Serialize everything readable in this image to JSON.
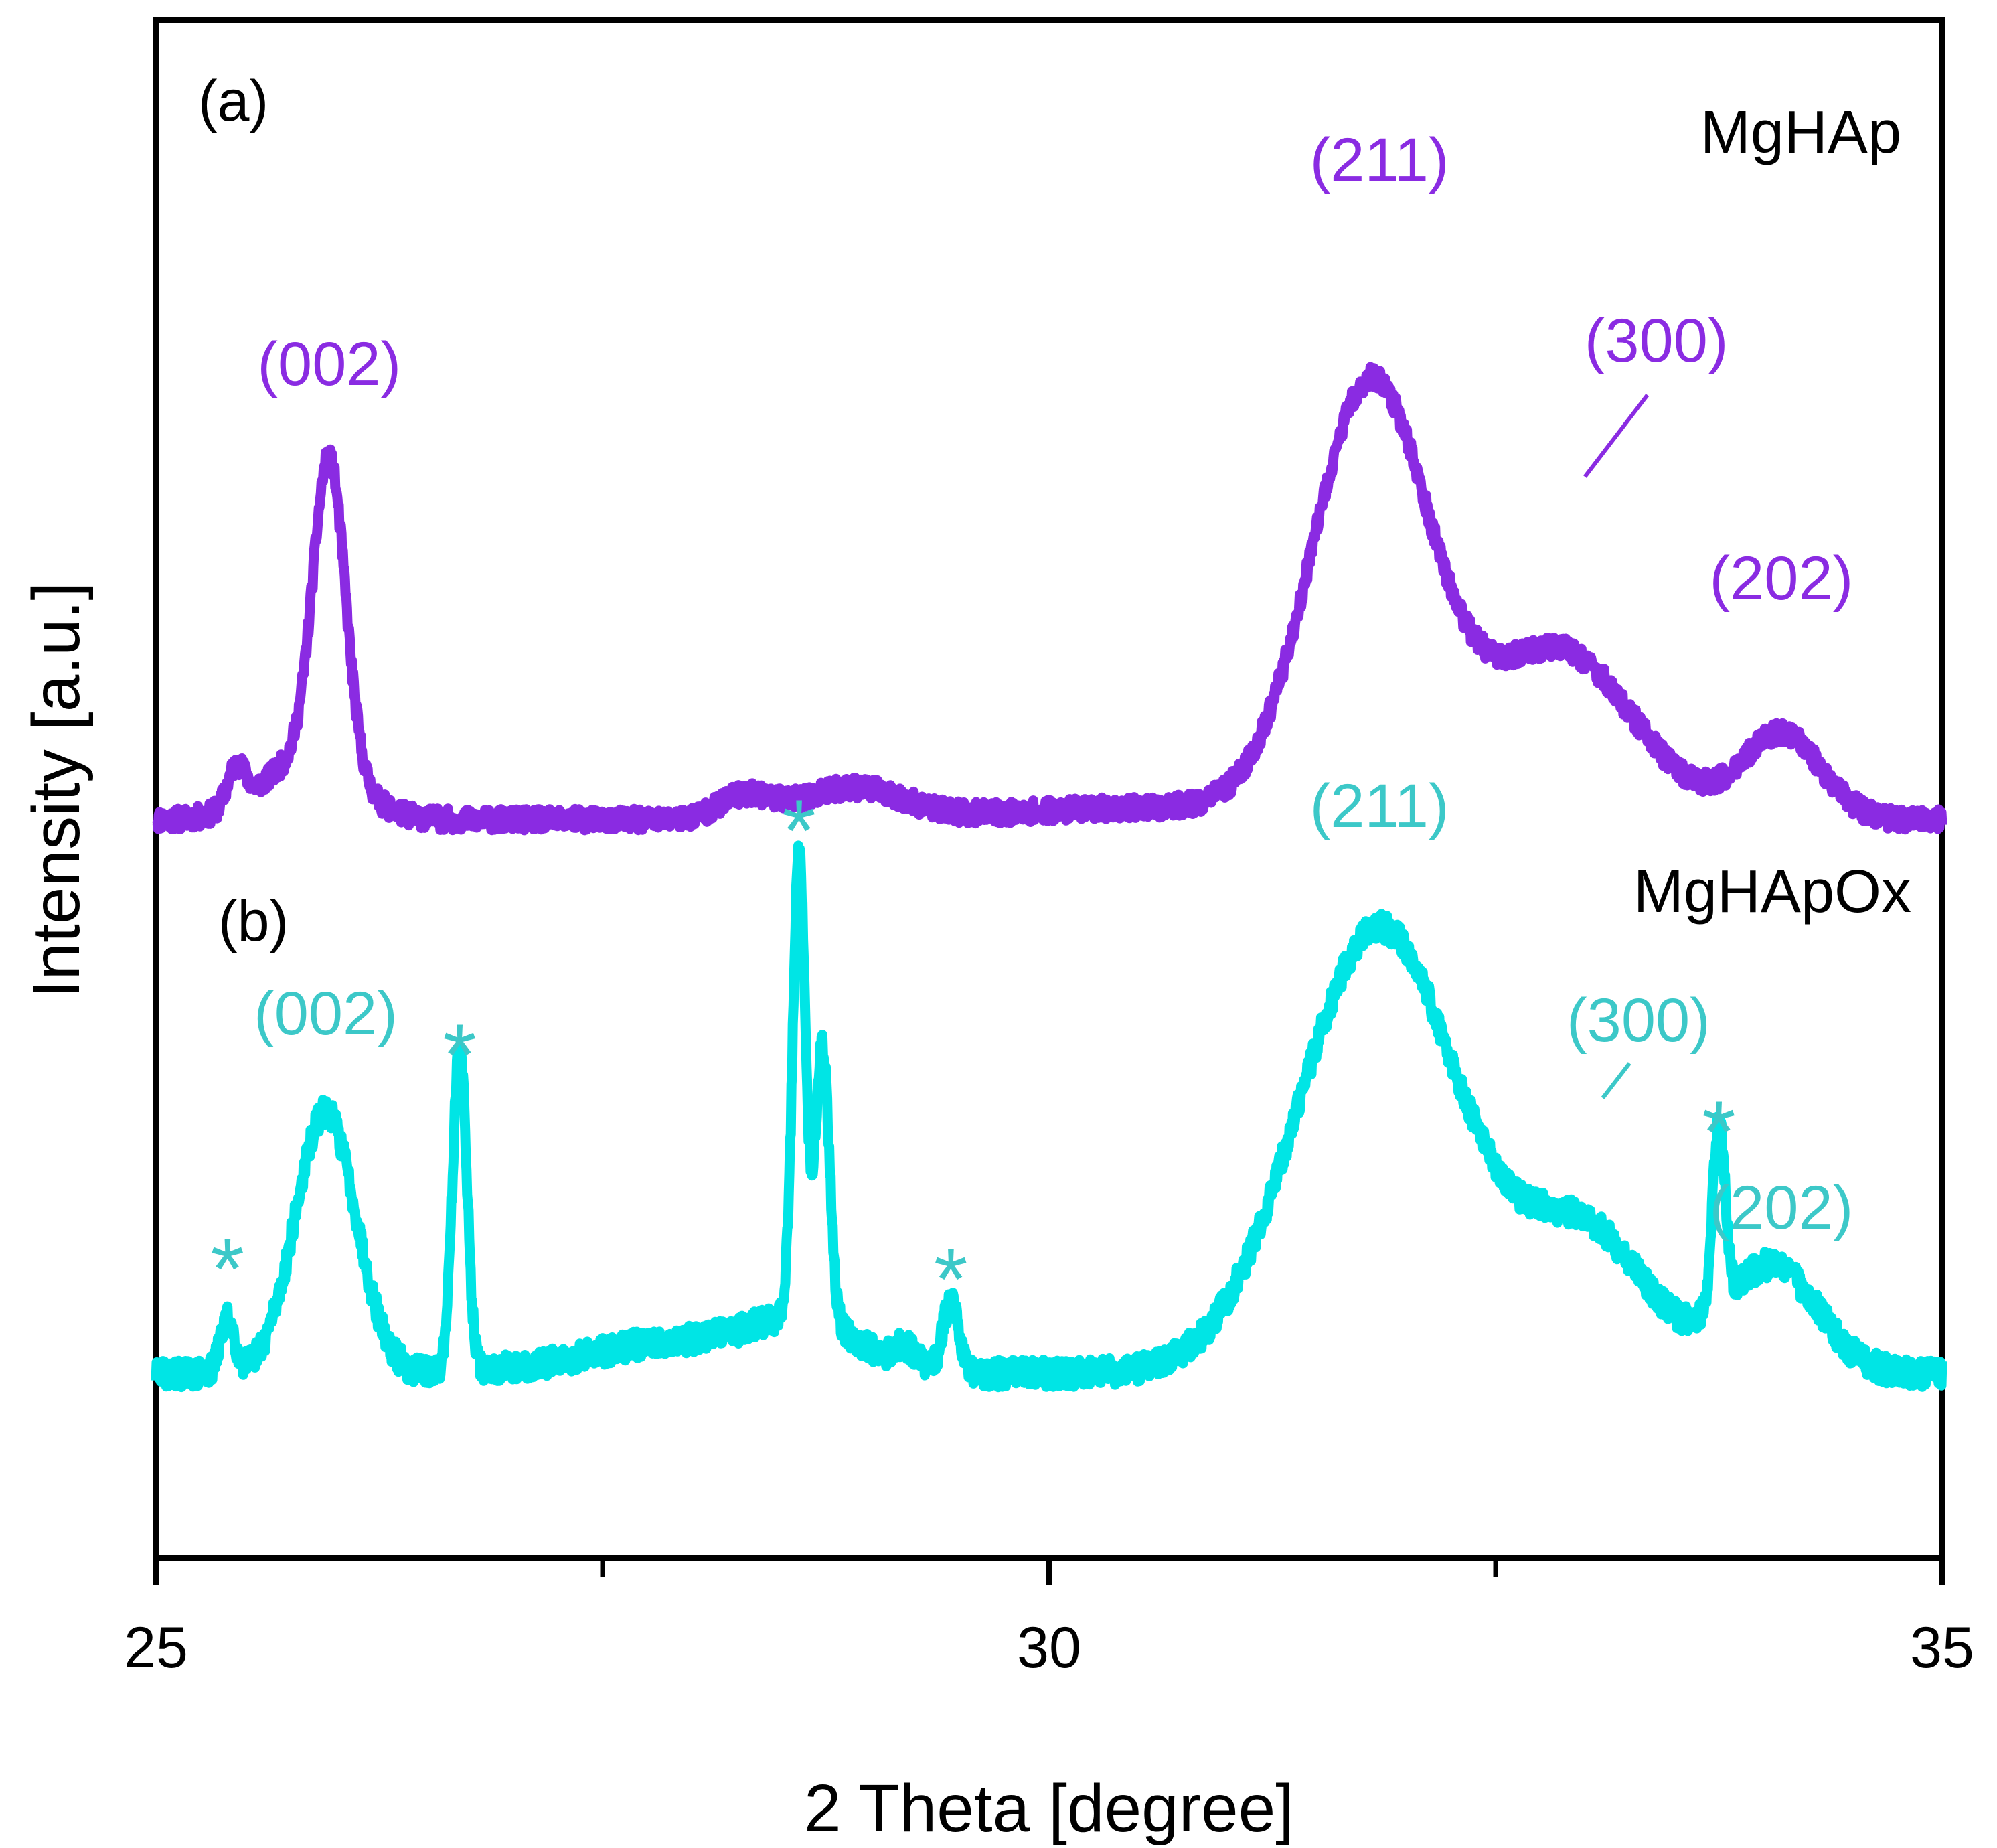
{
  "chart_data": {
    "type": "line",
    "xlabel": "2 Theta [degree]",
    "ylabel": "Intensity [a.u.]",
    "xlim": [
      25,
      35
    ],
    "ylim": [
      0,
      1
    ],
    "x_ticks": [
      "25",
      "30",
      "35"
    ],
    "x_ticks_values": [
      25,
      30,
      35
    ],
    "minor_ticks": [
      27.5,
      32.5
    ],
    "y_ticks": [],
    "colors": {
      "a": "#8a2be2",
      "b": "#00e5e5",
      "b_text": "#3cc8c8",
      "axis": "#000000"
    },
    "series": [
      {
        "id": "a",
        "panel_label": "(a)",
        "name": "MgHAp",
        "baseline": 0.48,
        "noise": 0.007,
        "seed": 11,
        "peaks": [
          {
            "center": 25.45,
            "height": 0.025,
            "width": 0.05
          },
          {
            "center": 25.97,
            "height": 0.2,
            "width": 0.09
          },
          {
            "center": 25.85,
            "height": 0.04,
            "width": 0.25
          },
          {
            "center": 28.3,
            "height": 0.015,
            "width": 0.15
          },
          {
            "center": 28.9,
            "height": 0.02,
            "width": 0.28
          },
          {
            "center": 30.6,
            "height": 0.008,
            "width": 0.8
          },
          {
            "center": 31.8,
            "height": 0.28,
            "width": 0.33
          },
          {
            "center": 32.85,
            "height": 0.11,
            "width": 0.42
          },
          {
            "center": 34.1,
            "height": 0.055,
            "width": 0.22
          }
        ],
        "annotations": [
          {
            "text": "(002)",
            "x": 25.97
          },
          {
            "text": "(211)",
            "x": 31.85
          },
          {
            "text": "(300)",
            "x": 33.4
          },
          {
            "text": "(202)",
            "x": 34.1
          }
        ]
      },
      {
        "id": "b",
        "panel_label": "(b)",
        "name": "MgHApOx",
        "baseline": 0.12,
        "noise": 0.009,
        "seed": 29,
        "peaks": [
          {
            "center": 25.4,
            "height": 0.035,
            "width": 0.04
          },
          {
            "center": 25.95,
            "height": 0.17,
            "width": 0.17
          },
          {
            "center": 26.7,
            "height": 0.21,
            "width": 0.04
          },
          {
            "center": 27.9,
            "height": 0.02,
            "width": 0.5
          },
          {
            "center": 28.6,
            "height": 0.3,
            "width": 0.035
          },
          {
            "center": 28.73,
            "height": 0.18,
            "width": 0.04
          },
          {
            "center": 28.65,
            "height": 0.03,
            "width": 0.3
          },
          {
            "center": 29.2,
            "height": 0.012,
            "width": 0.06
          },
          {
            "center": 29.45,
            "height": 0.045,
            "width": 0.045
          },
          {
            "center": 31.85,
            "height": 0.29,
            "width": 0.45
          },
          {
            "center": 33.0,
            "height": 0.09,
            "width": 0.35
          },
          {
            "center": 33.75,
            "height": 0.12,
            "width": 0.035
          },
          {
            "center": 34.05,
            "height": 0.07,
            "width": 0.25
          }
        ],
        "annotations": [
          {
            "text": "(002)",
            "x": 25.95
          },
          {
            "text": "(211)",
            "x": 31.85
          },
          {
            "text": "(300)",
            "x": 33.3
          },
          {
            "text": "(202)",
            "x": 34.1
          }
        ],
        "asterisks": [
          {
            "text": "*",
            "x": 25.4
          },
          {
            "text": "*",
            "x": 26.7
          },
          {
            "text": "*",
            "x": 28.6
          },
          {
            "text": "*",
            "x": 29.45
          },
          {
            "text": "*",
            "x": 33.75
          }
        ]
      }
    ]
  }
}
